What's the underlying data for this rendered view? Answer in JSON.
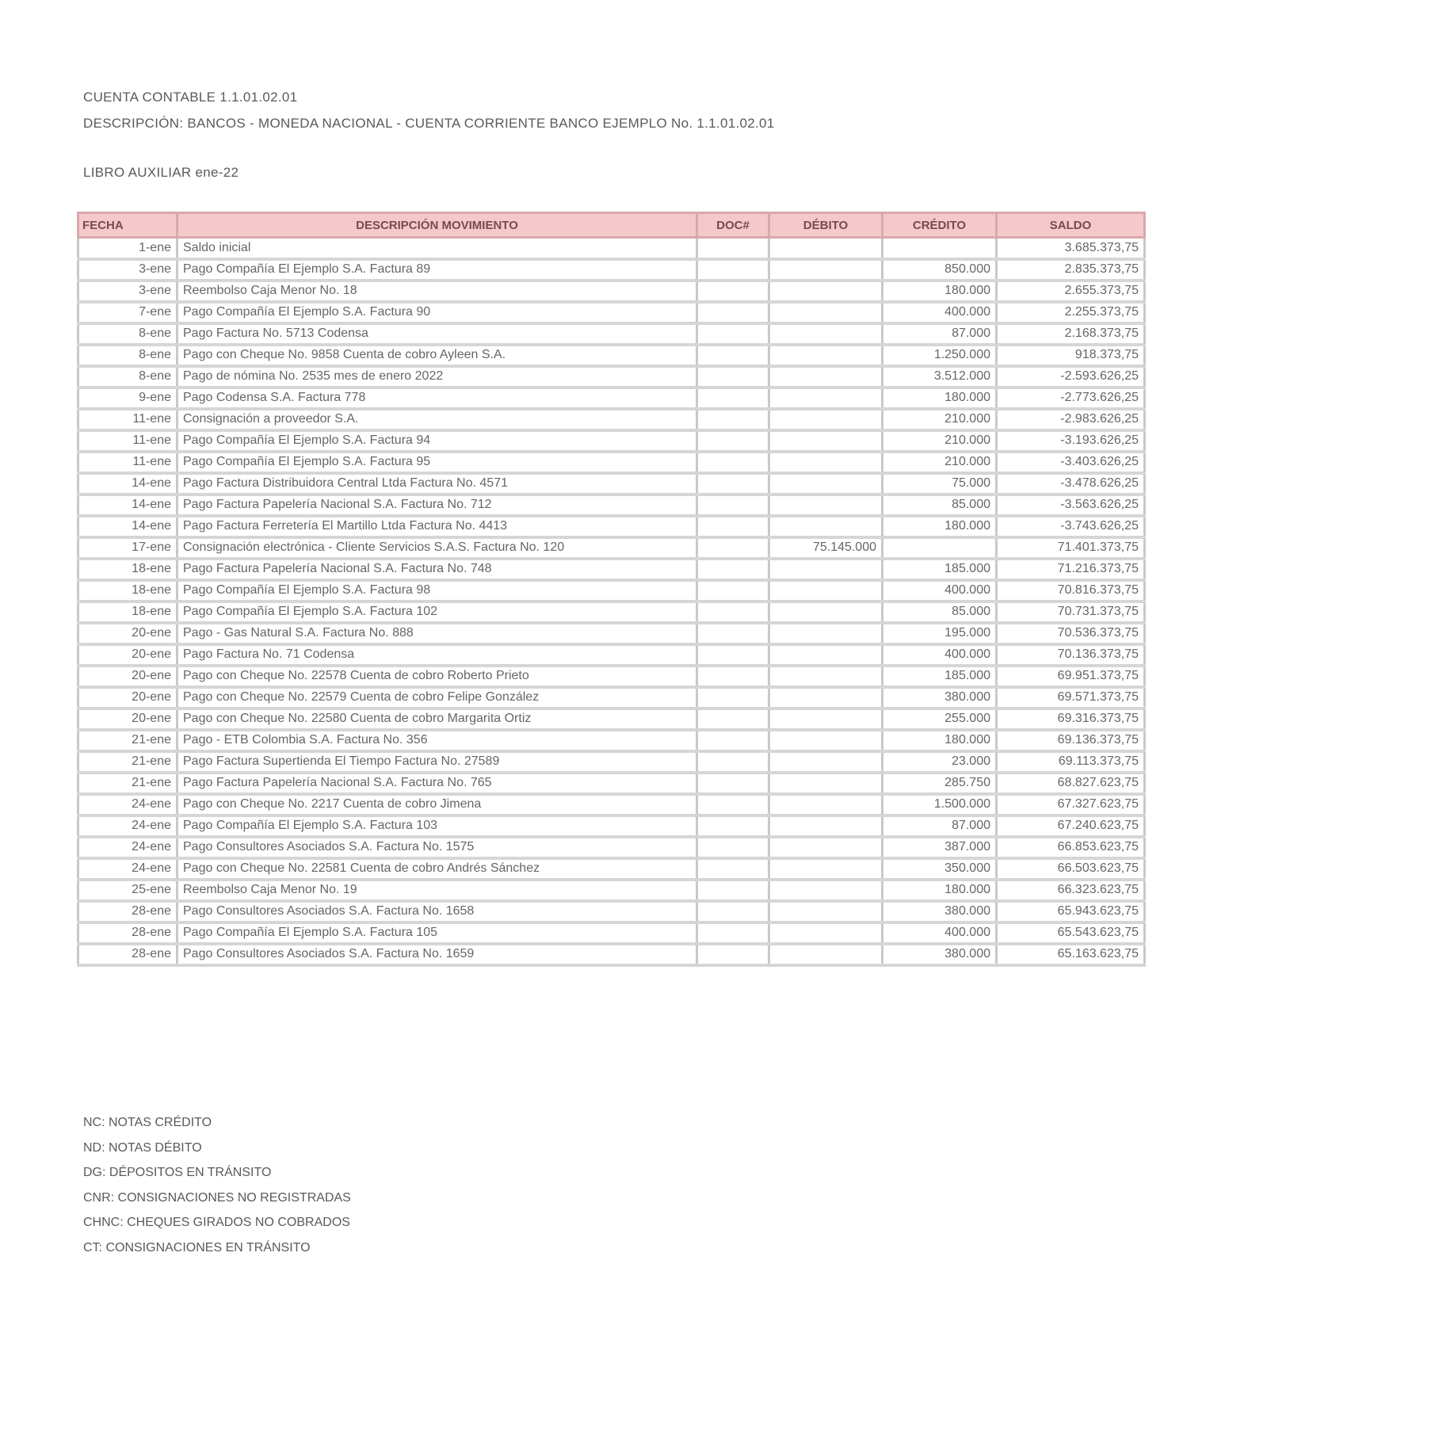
{
  "header": {
    "account": "CUENTA CONTABLE 1.1.01.02.01",
    "description": "DESCRIPCIÓN: BANCOS - MONEDA NACIONAL - CUENTA CORRIENTE BANCO EJEMPLO No. 1.1.01.02.01",
    "book": "LIBRO AUXILIAR ene-22"
  },
  "table": {
    "columns": [
      "FECHA",
      "DESCRIPCIÓN MOVIMIENTO",
      "DOC#",
      "DÉBITO",
      "CRÉDITO",
      "SALDO"
    ],
    "rows": [
      [
        "1-ene",
        "Saldo inicial",
        "",
        "",
        "",
        "3.685.373,75"
      ],
      [
        "3-ene",
        "Pago Compañía El Ejemplo S.A. Factura 89",
        "",
        "",
        "850.000",
        "2.835.373,75"
      ],
      [
        "3-ene",
        "Reembolso Caja Menor No. 18",
        "",
        "",
        "180.000",
        "2.655.373,75"
      ],
      [
        "7-ene",
        "Pago Compañía El Ejemplo S.A. Factura 90",
        "",
        "",
        "400.000",
        "2.255.373,75"
      ],
      [
        "8-ene",
        "Pago Factura No. 5713 Codensa",
        "",
        "",
        "87.000",
        "2.168.373,75"
      ],
      [
        "8-ene",
        "Pago con Cheque No. 9858 Cuenta de cobro Ayleen S.A.",
        "",
        "",
        "1.250.000",
        "918.373,75"
      ],
      [
        "8-ene",
        "Pago de nómina No. 2535 mes de enero 2022",
        "",
        "",
        "3.512.000",
        "-2.593.626,25"
      ],
      [
        "9-ene",
        "Pago Codensa S.A. Factura 778",
        "",
        "",
        "180.000",
        "-2.773.626,25"
      ],
      [
        "11-ene",
        "Consignación a proveedor S.A.",
        "",
        "",
        "210.000",
        "-2.983.626,25"
      ],
      [
        "11-ene",
        "Pago Compañía El Ejemplo S.A. Factura 94",
        "",
        "",
        "210.000",
        "-3.193.626,25"
      ],
      [
        "11-ene",
        "Pago Compañía El Ejemplo S.A. Factura 95",
        "",
        "",
        "210.000",
        "-3.403.626,25"
      ],
      [
        "14-ene",
        "Pago Factura Distribuidora Central Ltda Factura No. 4571",
        "",
        "",
        "75.000",
        "-3.478.626,25"
      ],
      [
        "14-ene",
        "Pago Factura Papelería Nacional S.A. Factura No. 712",
        "",
        "",
        "85.000",
        "-3.563.626,25"
      ],
      [
        "14-ene",
        "Pago Factura Ferretería El Martillo Ltda Factura No. 4413",
        "",
        "",
        "180.000",
        "-3.743.626,25"
      ],
      [
        "17-ene",
        "Consignación electrónica - Cliente Servicios S.A.S. Factura No. 120",
        "",
        "75.145.000",
        "",
        "71.401.373,75"
      ],
      [
        "18-ene",
        "Pago Factura Papelería Nacional S.A. Factura No. 748",
        "",
        "",
        "185.000",
        "71.216.373,75"
      ],
      [
        "18-ene",
        "Pago Compañía El Ejemplo S.A. Factura 98",
        "",
        "",
        "400.000",
        "70.816.373,75"
      ],
      [
        "18-ene",
        "Pago Compañía El Ejemplo S.A. Factura 102",
        "",
        "",
        "85.000",
        "70.731.373,75"
      ],
      [
        "20-ene",
        "Pago - Gas Natural S.A. Factura No. 888",
        "",
        "",
        "195.000",
        "70.536.373,75"
      ],
      [
        "20-ene",
        "Pago Factura No. 71 Codensa",
        "",
        "",
        "400.000",
        "70.136.373,75"
      ],
      [
        "20-ene",
        "Pago con Cheque No. 22578 Cuenta de cobro Roberto Prieto",
        "",
        "",
        "185.000",
        "69.951.373,75"
      ],
      [
        "20-ene",
        "Pago con Cheque No. 22579 Cuenta de cobro Felipe González",
        "",
        "",
        "380.000",
        "69.571.373,75"
      ],
      [
        "20-ene",
        "Pago con Cheque No. 22580 Cuenta de cobro Margarita Ortiz",
        "",
        "",
        "255.000",
        "69.316.373,75"
      ],
      [
        "21-ene",
        "Pago - ETB Colombia S.A. Factura No. 356",
        "",
        "",
        "180.000",
        "69.136.373,75"
      ],
      [
        "21-ene",
        "Pago Factura Supertienda El Tiempo Factura No. 27589",
        "",
        "",
        "23.000",
        "69.113.373,75"
      ],
      [
        "21-ene",
        "Pago Factura Papelería Nacional S.A. Factura No. 765",
        "",
        "",
        "285.750",
        "68.827.623,75"
      ],
      [
        "24-ene",
        "Pago con Cheque No. 2217 Cuenta de cobro Jimena",
        "",
        "",
        "1.500.000",
        "67.327.623,75"
      ],
      [
        "24-ene",
        "Pago Compañía El Ejemplo S.A. Factura 103",
        "",
        "",
        "87.000",
        "67.240.623,75"
      ],
      [
        "24-ene",
        "Pago Consultores Asociados S.A. Factura No. 1575",
        "",
        "",
        "387.000",
        "66.853.623,75"
      ],
      [
        "24-ene",
        "Pago con Cheque No. 22581 Cuenta de cobro Andrés Sánchez",
        "",
        "",
        "350.000",
        "66.503.623,75"
      ],
      [
        "25-ene",
        "Reembolso Caja Menor No. 19",
        "",
        "",
        "180.000",
        "66.323.623,75"
      ],
      [
        "28-ene",
        "Pago Consultores Asociados S.A. Factura No. 1658",
        "",
        "",
        "380.000",
        "65.943.623,75"
      ],
      [
        "28-ene",
        "Pago Compañía El Ejemplo S.A. Factura 105",
        "",
        "",
        "400.000",
        "65.543.623,75"
      ],
      [
        "28-ene",
        "Pago Consultores Asociados S.A. Factura No. 1659",
        "",
        "",
        "380.000",
        "65.163.623,75"
      ]
    ]
  },
  "footer": [
    "NC: NOTAS CRÉDITO",
    "ND: NOTAS DÉBITO",
    "DG: DÉPOSITOS EN TRÁNSITO",
    "CNR: CONSIGNACIONES NO REGISTRADAS",
    "CHNC: CHEQUES GIRADOS NO COBRADOS",
    "CT: CONSIGNACIONES EN TRÁNSITO"
  ],
  "colors": {
    "header_fill": "#f4c9cb",
    "header_border": "#d9a8ab",
    "grid": "#d6d6d6"
  }
}
